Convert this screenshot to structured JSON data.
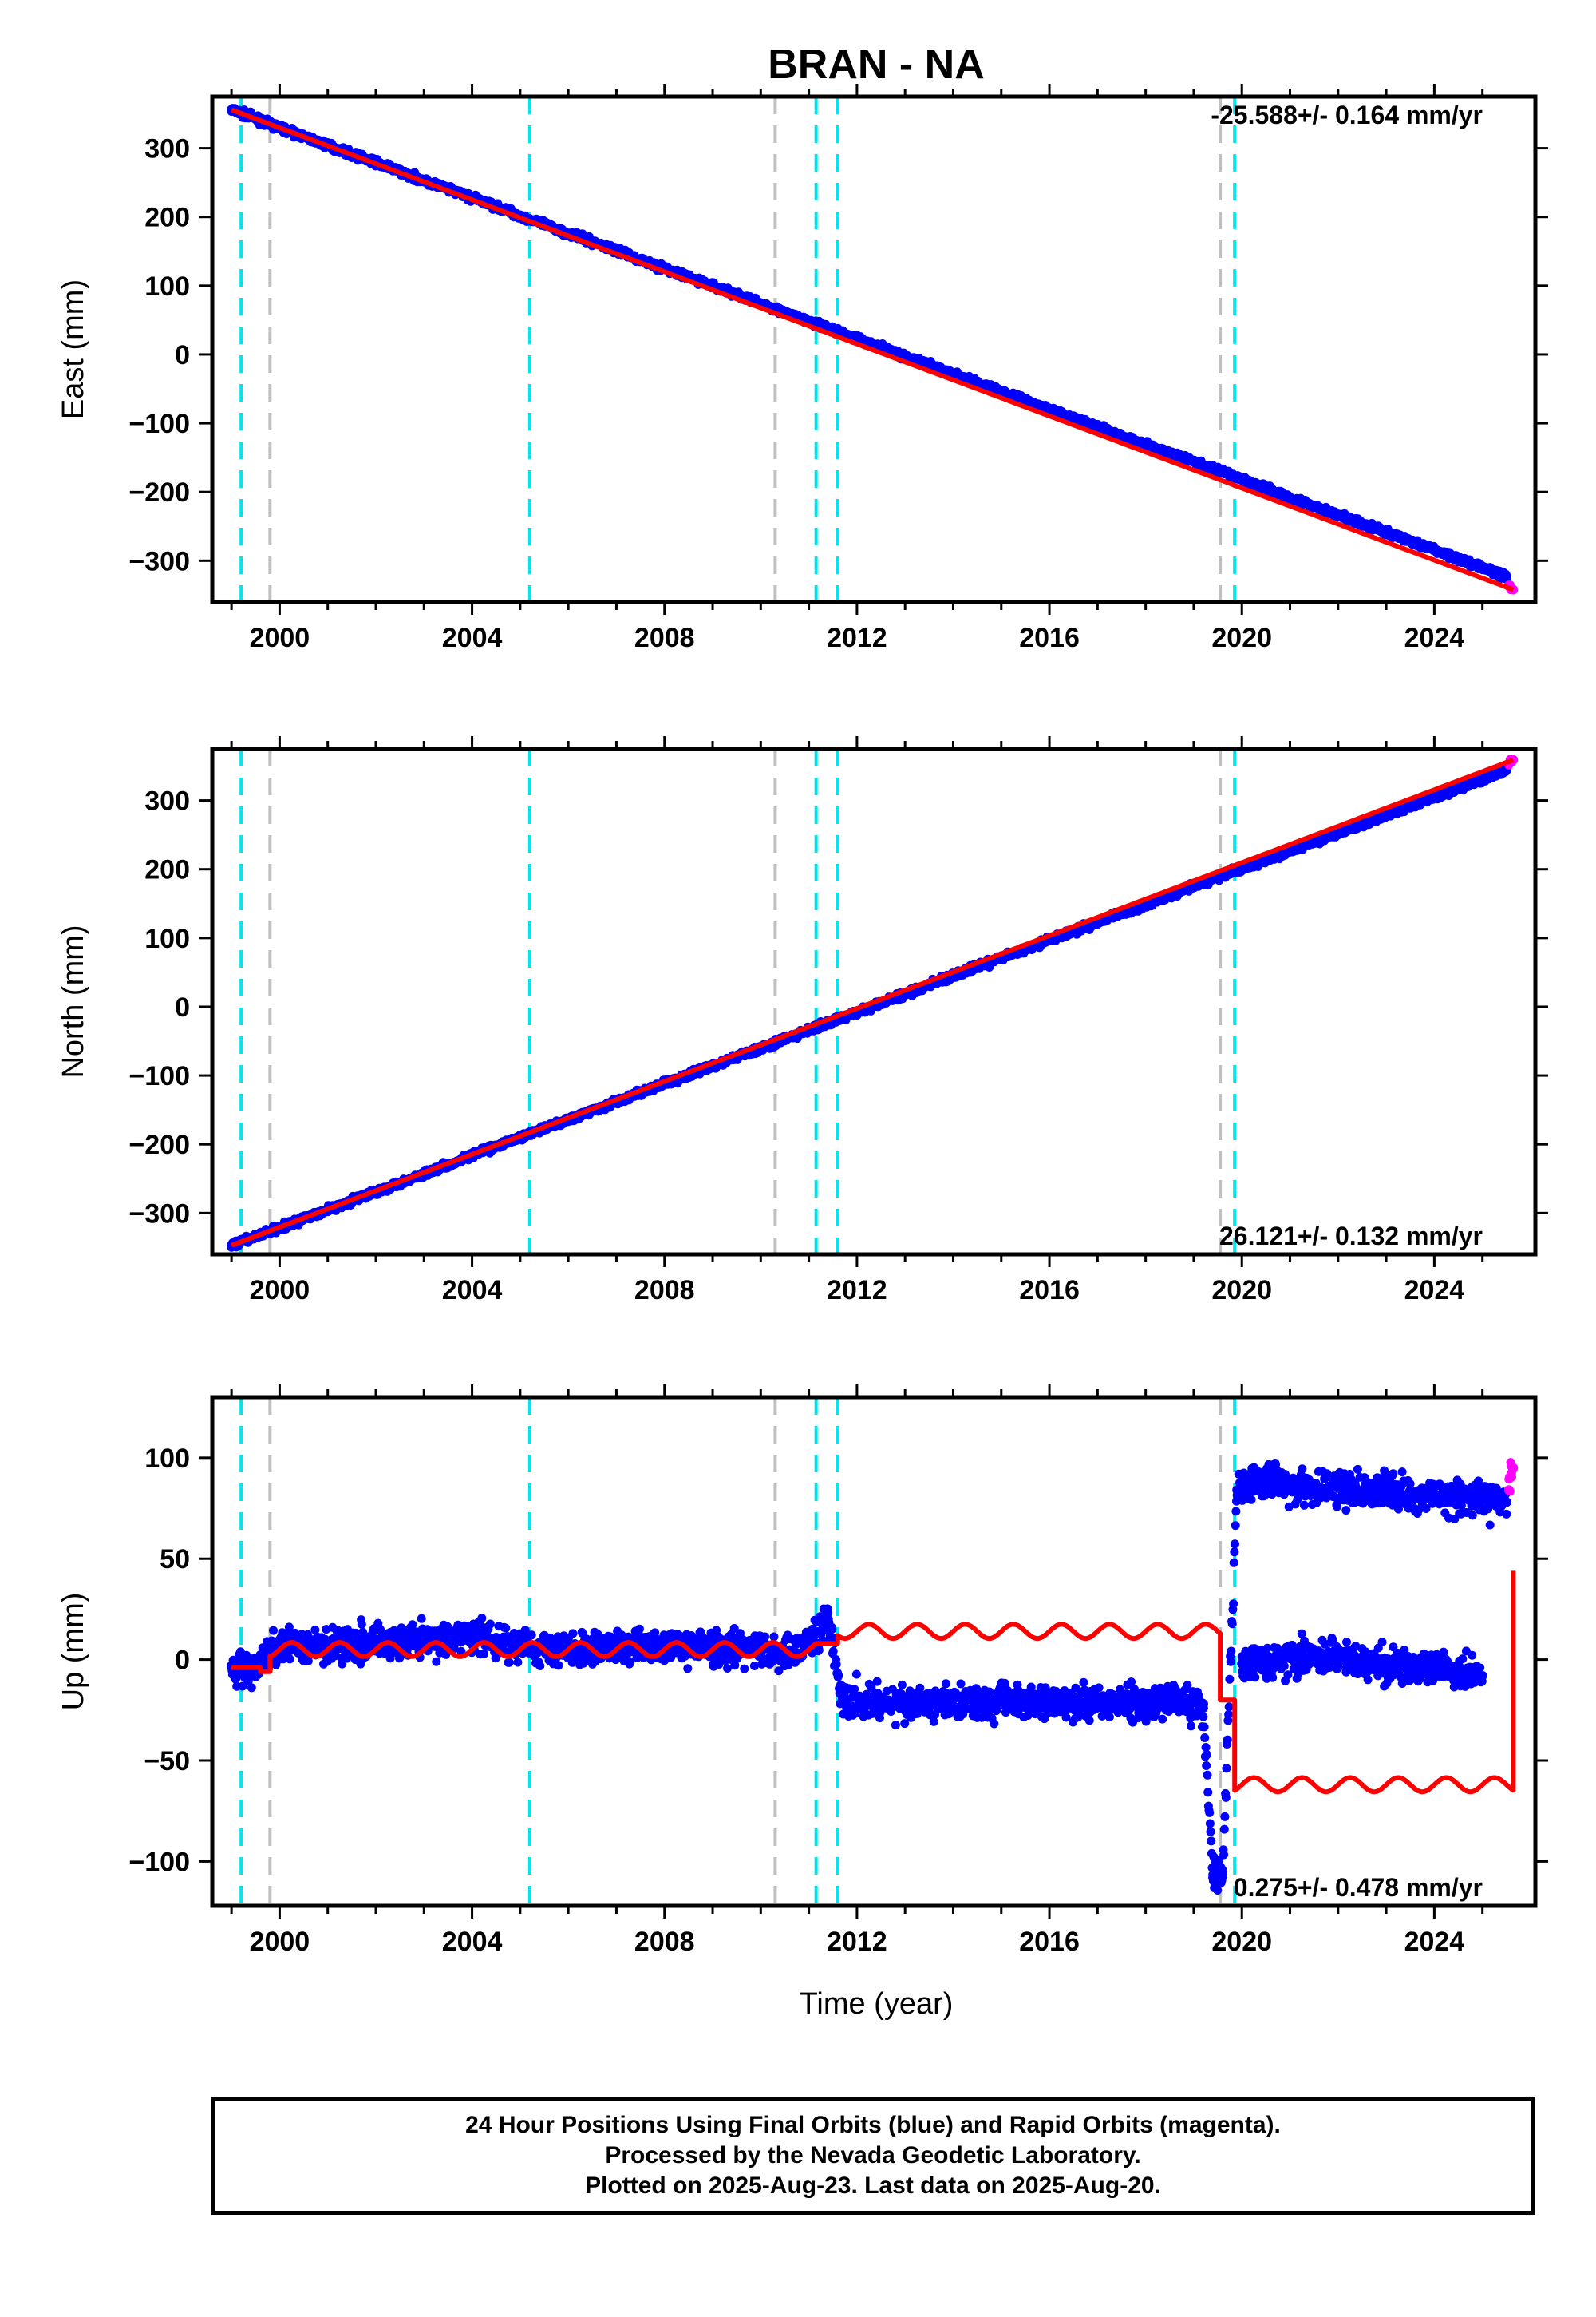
{
  "title": "BRAN - NA",
  "colors": {
    "final_orbits": "#0000ff",
    "rapid_orbits": "#ff00ff",
    "model": "#ff0000",
    "equipment_change": "#00e5ee",
    "other_event": "#c0c0c0"
  },
  "events": {
    "cyan": [
      1999.2,
      2005.2,
      2011.15,
      2011.6,
      2019.85
    ],
    "gray": [
      1999.8,
      2010.3,
      2019.55
    ]
  },
  "x_ticks": [
    "2000",
    "2004",
    "2008",
    "2012",
    "2016",
    "2020",
    "2024"
  ],
  "x_label": "Time (year)",
  "footer": {
    "line1": "24 Hour Positions Using Final Orbits (blue) and Rapid Orbits (magenta).",
    "line2": "Processed by the Nevada Geodetic Laboratory.",
    "line3": "Plotted on 2025-Aug-23. Last data on 2025-Aug-20."
  },
  "chart_data": [
    {
      "type": "scatter",
      "ylabel": "East (mm)",
      "rate_label": "-25.588+/- 0.164 mm/yr",
      "xlim": [
        1998.6,
        2026.1
      ],
      "ylim": [
        -360,
        375
      ],
      "yticks": [
        "300",
        "200",
        "100",
        "0",
        "−100",
        "−200",
        "−300"
      ],
      "series": [
        {
          "name": "Final Orbits (blue)",
          "x": [
            1999.0,
            2000.0,
            2001.0,
            2002.0,
            2003.0,
            2004.0,
            2005.0,
            2006.0,
            2007.0,
            2008.0,
            2009.0,
            2010.0,
            2011.0,
            2012.0,
            2013.0,
            2014.0,
            2015.0,
            2016.0,
            2017.0,
            2018.0,
            2019.0,
            2020.0,
            2021.0,
            2022.0,
            2023.0,
            2024.0,
            2025.0,
            2025.5
          ],
          "y": [
            356,
            330,
            304,
            279,
            253,
            228,
            202,
            176,
            151,
            125,
            100,
            74,
            48,
            23,
            -3,
            -28,
            -54,
            -80,
            -105,
            -131,
            -156,
            -182,
            -208,
            -233,
            -259,
            -284,
            -310,
            -323
          ]
        },
        {
          "name": "Rapid Orbits (magenta)",
          "x": [
            2025.55,
            2025.6,
            2025.64
          ],
          "y": [
            -337,
            -341,
            -342
          ]
        }
      ],
      "model": {
        "x": [
          1999.0,
          2025.64
        ],
        "y": [
          356,
          -342
        ]
      }
    },
    {
      "type": "scatter",
      "ylabel": "North (mm)",
      "rate_label": "26.121+/- 0.132 mm/yr",
      "xlim": [
        1998.6,
        2026.1
      ],
      "ylim": [
        -360,
        375
      ],
      "yticks": [
        "300",
        "200",
        "100",
        "0",
        "−100",
        "−200",
        "−300"
      ],
      "series": [
        {
          "name": "Final Orbits (blue)",
          "x": [
            1999.0,
            2000.0,
            2001.0,
            2002.0,
            2003.0,
            2004.0,
            2005.0,
            2006.0,
            2007.0,
            2008.0,
            2009.0,
            2010.0,
            2011.0,
            2012.0,
            2013.0,
            2014.0,
            2015.0,
            2016.0,
            2017.0,
            2018.0,
            2019.0,
            2020.0,
            2021.0,
            2022.0,
            2023.0,
            2024.0,
            2025.0,
            2025.5
          ],
          "y": [
            -347,
            -321,
            -295,
            -269,
            -243,
            -216,
            -190,
            -164,
            -138,
            -112,
            -86,
            -60,
            -34,
            -8,
            18,
            45,
            71,
            97,
            123,
            149,
            175,
            201,
            227,
            253,
            279,
            305,
            331,
            344
          ]
        },
        {
          "name": "Rapid Orbits (magenta)",
          "x": [
            2025.55,
            2025.6,
            2025.64
          ],
          "y": [
            354,
            357,
            359
          ]
        }
      ],
      "model": {
        "x": [
          1999.0,
          2025.64
        ],
        "y": [
          -347,
          359
        ]
      }
    },
    {
      "type": "scatter",
      "ylabel": "Up (mm)",
      "rate_label": "0.275+/- 0.478 mm/yr",
      "xlim": [
        1998.6,
        2026.1
      ],
      "ylim": [
        -122,
        130
      ],
      "yticks": [
        "100",
        "50",
        "0",
        "−50",
        "−100"
      ],
      "series": [
        {
          "name": "Final Orbits (blue)",
          "x": [
            1999.0,
            1999.4,
            1999.8,
            2000.3,
            2001.0,
            2002.0,
            2003.0,
            2004.0,
            2005.0,
            2006.0,
            2007.0,
            2008.0,
            2009.0,
            2010.0,
            2010.6,
            2011.1,
            2011.4,
            2011.7,
            2012.5,
            2013.5,
            2014.5,
            2015.5,
            2016.5,
            2017.5,
            2018.5,
            2019.2,
            2019.4,
            2019.6,
            2019.9,
            2020.2,
            2020.4,
            2020.6,
            2021.0,
            2021.5,
            2022.0,
            2022.5,
            2023.0,
            2023.5,
            2024.0,
            2024.5,
            2025.0,
            2025.5
          ],
          "y": [
            -3,
            -6,
            4,
            7,
            8,
            9,
            10,
            11,
            7,
            5,
            6,
            7,
            6,
            4,
            3,
            12,
            20,
            -20,
            -21,
            -22,
            -21,
            -20,
            -21,
            -22,
            -20,
            -22,
            -108,
            -105,
            84,
            88,
            85,
            92,
            85,
            84,
            85,
            83,
            84,
            82,
            81,
            80,
            79,
            78
          ]
        },
        {
          "name": "Final Orbits (blue) lower branch",
          "x": [
            2020.0,
            2020.5,
            2021.0,
            2021.5,
            2022.0,
            2022.5,
            2023.0,
            2023.5,
            2024.0,
            2024.5,
            2025.0
          ],
          "y": [
            -2,
            0,
            1,
            0,
            2,
            -1,
            -3,
            -4,
            -5,
            -6,
            -8
          ]
        },
        {
          "name": "Rapid Orbits (magenta)",
          "x": [
            2025.55,
            2025.6,
            2025.64
          ],
          "y": [
            84,
            92,
            95
          ]
        }
      ],
      "model": {
        "x": [
          1999.0,
          1999.6,
          1999.8,
          2010.3,
          2011.15,
          2011.6,
          2019.55,
          2019.85,
          2025.64
        ],
        "y": [
          -4,
          -6,
          5,
          5,
          8,
          14,
          -20,
          -62,
          44
        ]
      }
    }
  ]
}
